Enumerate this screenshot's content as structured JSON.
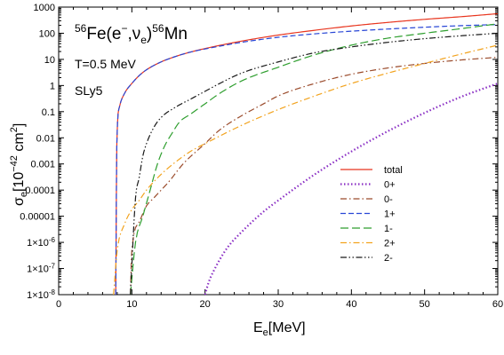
{
  "chart_data": {
    "type": "line",
    "title": {
      "pre": "56",
      "base1": "Fe(e",
      "minus": "−",
      "mid": ",ν",
      "sub": "e",
      "close": ")",
      "pre2": "56",
      "base2": "Mn"
    },
    "annotations": [
      "T=0.5 MeV",
      "SLy5"
    ],
    "xlabel": {
      "main": "E",
      "sub": "e",
      "unit": "[MeV]"
    },
    "ylabel": {
      "main": "σ",
      "sub": "e",
      "unit1": "[10",
      "exp": "−42",
      "unit2": " cm",
      "exp2": "2",
      "unit3": "]"
    },
    "xlim": [
      0,
      60
    ],
    "ylim": [
      1e-08,
      1000
    ],
    "yscale": "log",
    "grid": false,
    "legend_position": "bottom-right",
    "x_ticks": [
      0,
      10,
      20,
      30,
      40,
      50,
      60
    ],
    "x_tick_labels": [
      "0",
      "10",
      "20",
      "30",
      "40",
      "50",
      "60"
    ],
    "y_ticks": [
      1e-08,
      1e-07,
      1e-06,
      1e-05,
      0.0001,
      0.001,
      0.01,
      0.1,
      1,
      10,
      100,
      1000
    ],
    "y_tick_labels": [
      {
        "base": "1×10",
        "exp": "-8"
      },
      {
        "base": "1×10",
        "exp": "-7"
      },
      {
        "base": "1×10",
        "exp": "-6"
      },
      {
        "base": "0.00001",
        "exp": ""
      },
      {
        "base": "0.0001",
        "exp": ""
      },
      {
        "base": "0.001",
        "exp": ""
      },
      {
        "base": "0.01",
        "exp": ""
      },
      {
        "base": "0.1",
        "exp": ""
      },
      {
        "base": "1",
        "exp": ""
      },
      {
        "base": "10",
        "exp": ""
      },
      {
        "base": "100",
        "exp": ""
      },
      {
        "base": "1000",
        "exp": ""
      }
    ],
    "series": [
      {
        "name": "total",
        "color": "#e8351e",
        "dash": "solid",
        "points": [
          [
            7.8,
            1e-08
          ],
          [
            7.95,
            0.006
          ],
          [
            8.3,
            0.15
          ],
          [
            9,
            0.5
          ],
          [
            10,
            1.2
          ],
          [
            11,
            2.4
          ],
          [
            12,
            4
          ],
          [
            14,
            8
          ],
          [
            16,
            13
          ],
          [
            18,
            19
          ],
          [
            20,
            26
          ],
          [
            25,
            50
          ],
          [
            30,
            85
          ],
          [
            35,
            130
          ],
          [
            40,
            190
          ],
          [
            45,
            260
          ],
          [
            50,
            340
          ],
          [
            55,
            430
          ],
          [
            60,
            560
          ]
        ]
      },
      {
        "name": "0+",
        "color": "#8a2fc4",
        "dash": "dotted",
        "points": [
          [
            20,
            1e-08
          ],
          [
            20.5,
            3e-08
          ],
          [
            21.5,
            1.2e-07
          ],
          [
            23,
            6e-07
          ],
          [
            25,
            2.5e-06
          ],
          [
            28,
            1.5e-05
          ],
          [
            30,
            4e-05
          ],
          [
            35,
            0.0004
          ],
          [
            40,
            0.003
          ],
          [
            45,
            0.018
          ],
          [
            50,
            0.09
          ],
          [
            55,
            0.37
          ],
          [
            60,
            1.2
          ]
        ]
      },
      {
        "name": "0-",
        "color": "#9a4a2a",
        "dash": "dashdot",
        "points": [
          [
            9.8,
            1e-08
          ],
          [
            10,
            5e-07
          ],
          [
            11,
            6e-06
          ],
          [
            12,
            2.5e-05
          ],
          [
            13,
            5e-05
          ],
          [
            14,
            0.0001
          ],
          [
            15,
            0.0002
          ],
          [
            17,
            0.001
          ],
          [
            20,
            0.006
          ],
          [
            22,
            0.02
          ],
          [
            25,
            0.07
          ],
          [
            28,
            0.2
          ],
          [
            30,
            0.4
          ],
          [
            35,
            1.2
          ],
          [
            40,
            2.7
          ],
          [
            45,
            4.7
          ],
          [
            50,
            7
          ],
          [
            55,
            9.5
          ],
          [
            60,
            12
          ]
        ]
      },
      {
        "name": "1+",
        "color": "#2846d6",
        "dash": "dashed",
        "points": [
          [
            7.8,
            1e-08
          ],
          [
            7.95,
            0.006
          ],
          [
            8.3,
            0.15
          ],
          [
            9,
            0.5
          ],
          [
            10,
            1.2
          ],
          [
            11,
            2.4
          ],
          [
            12,
            4
          ],
          [
            14,
            8
          ],
          [
            16,
            13
          ],
          [
            18,
            19
          ],
          [
            20,
            25
          ],
          [
            25,
            45
          ],
          [
            30,
            70
          ],
          [
            35,
            95
          ],
          [
            40,
            120
          ],
          [
            45,
            145
          ],
          [
            50,
            170
          ],
          [
            55,
            195
          ],
          [
            60,
            215
          ]
        ]
      },
      {
        "name": "1-",
        "color": "#2e9e2e",
        "dash": "longdash",
        "points": [
          [
            9.8,
            1e-08
          ],
          [
            10.5,
            1e-06
          ],
          [
            11.5,
            1e-05
          ],
          [
            12.5,
            0.0001
          ],
          [
            13.5,
            0.001
          ],
          [
            14.5,
            0.005
          ],
          [
            15.5,
            0.015
          ],
          [
            16.5,
            0.04
          ],
          [
            18,
            0.08
          ],
          [
            20,
            0.2
          ],
          [
            22,
            0.5
          ],
          [
            25,
            1.5
          ],
          [
            30,
            5
          ],
          [
            35,
            15
          ],
          [
            40,
            35
          ],
          [
            45,
            65
          ],
          [
            50,
            100
          ],
          [
            55,
            150
          ],
          [
            60,
            230
          ]
        ]
      },
      {
        "name": "2+",
        "color": "#f2a31e",
        "dash": "dashdot",
        "points": [
          [
            7.5,
            1e-08
          ],
          [
            8,
            5e-07
          ],
          [
            9,
            5e-06
          ],
          [
            10,
            1.8e-05
          ],
          [
            11,
            4e-05
          ],
          [
            12,
            0.0001
          ],
          [
            14,
            0.0004
          ],
          [
            16,
            0.0012
          ],
          [
            18,
            0.003
          ],
          [
            20,
            0.006
          ],
          [
            25,
            0.03
          ],
          [
            30,
            0.12
          ],
          [
            35,
            0.4
          ],
          [
            40,
            1.2
          ],
          [
            45,
            3
          ],
          [
            50,
            7
          ],
          [
            55,
            16
          ],
          [
            60,
            35
          ]
        ]
      },
      {
        "name": "2-",
        "color": "#1a1a1a",
        "dash": "dashdotdot",
        "points": [
          [
            9.8,
            1e-08
          ],
          [
            10.5,
            5e-05
          ],
          [
            11,
            0.0003
          ],
          [
            11.5,
            0.002
          ],
          [
            12,
            0.006
          ],
          [
            13,
            0.025
          ],
          [
            14,
            0.06
          ],
          [
            16,
            0.15
          ],
          [
            18,
            0.3
          ],
          [
            20,
            0.6
          ],
          [
            22,
            1.2
          ],
          [
            25,
            3
          ],
          [
            30,
            8
          ],
          [
            35,
            18
          ],
          [
            40,
            30
          ],
          [
            45,
            45
          ],
          [
            50,
            62
          ],
          [
            55,
            80
          ],
          [
            60,
            100
          ]
        ]
      }
    ]
  }
}
